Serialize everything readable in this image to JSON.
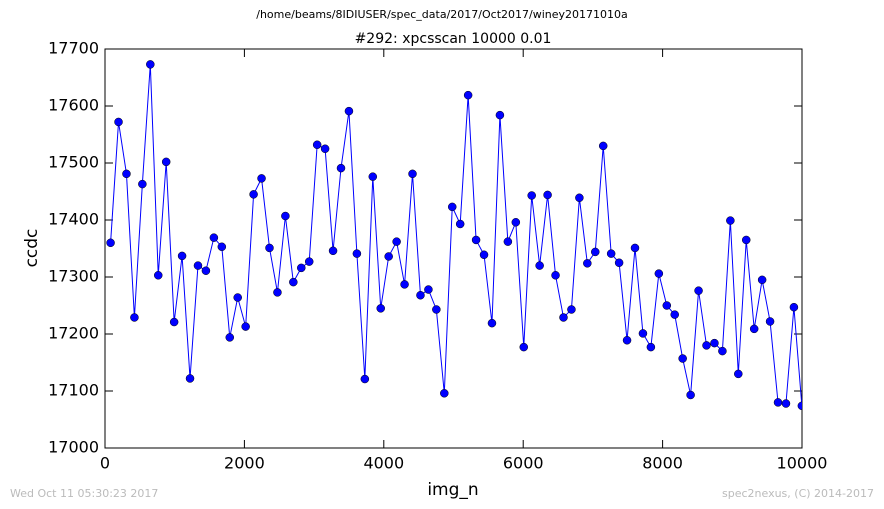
{
  "chart_data": {
    "type": "line",
    "suptitle": "/home/beams/8IDIUSER/spec_data/2017/Oct2017/winey20171010a",
    "title": "#292: xpcsscan 10000 0.01",
    "xlabel": "img_n",
    "ylabel": "ccdc",
    "footer_left": "Wed Oct 11 05:30:23 2017",
    "footer_right": "spec2nexus, (C) 2014-2017",
    "x": [
      80,
      194,
      308,
      422,
      536,
      650,
      764,
      878,
      992,
      1106,
      1220,
      1334,
      1448,
      1562,
      1676,
      1790,
      1904,
      2018,
      2132,
      2246,
      2360,
      2474,
      2588,
      2702,
      2816,
      2930,
      3044,
      3158,
      3272,
      3386,
      3500,
      3614,
      3728,
      3842,
      3956,
      4070,
      4184,
      4298,
      4412,
      4526,
      4640,
      4754,
      4868,
      4982,
      5096,
      5210,
      5324,
      5438,
      5552,
      5666,
      5780,
      5894,
      6008,
      6122,
      6236,
      6350,
      6464,
      6578,
      6692,
      6806,
      6920,
      7034,
      7148,
      7262,
      7376,
      7490,
      7604,
      7718,
      7832,
      7946,
      8060,
      8174,
      8288,
      8402,
      8516,
      8630,
      8744,
      8858,
      8972,
      9086,
      9200,
      9314,
      9428,
      9542,
      9656,
      9770,
      9884,
      9998
    ],
    "series": [
      {
        "color": "#0000ff",
        "values": [
          17360,
          17572,
          17481,
          17229,
          17463,
          17673,
          17303,
          17502,
          17221,
          17337,
          17122,
          17320,
          17311,
          17369,
          17353,
          17194,
          17264,
          17213,
          17445,
          17473,
          17351,
          17273,
          17407,
          17291,
          17316,
          17327,
          17532,
          17525,
          17346,
          17491,
          17591,
          17341,
          17121,
          17476,
          17245,
          17336,
          17362,
          17287,
          17481,
          17268,
          17278,
          17243,
          17096,
          17423,
          17393,
          17619,
          17365,
          17339,
          17219,
          17584,
          17362,
          17396,
          17177,
          17443,
          17320,
          17444,
          17303,
          17229,
          17243,
          17439,
          17324,
          17344,
          17530,
          17341,
          17325,
          17189,
          17351,
          17201,
          17177,
          17306,
          17250,
          17234,
          17157,
          17093,
          17276,
          17180,
          17184,
          17170,
          17399,
          17130,
          17365,
          17209,
          17295,
          17222,
          17080,
          17078,
          17247,
          17074
        ]
      }
    ],
    "xlim": [
      0,
      10000
    ],
    "ylim": [
      17000,
      17700
    ],
    "xticks": [
      0,
      2000,
      4000,
      6000,
      8000,
      10000
    ],
    "yticks": [
      17000,
      17100,
      17200,
      17300,
      17400,
      17500,
      17600,
      17700
    ],
    "grid": false
  }
}
